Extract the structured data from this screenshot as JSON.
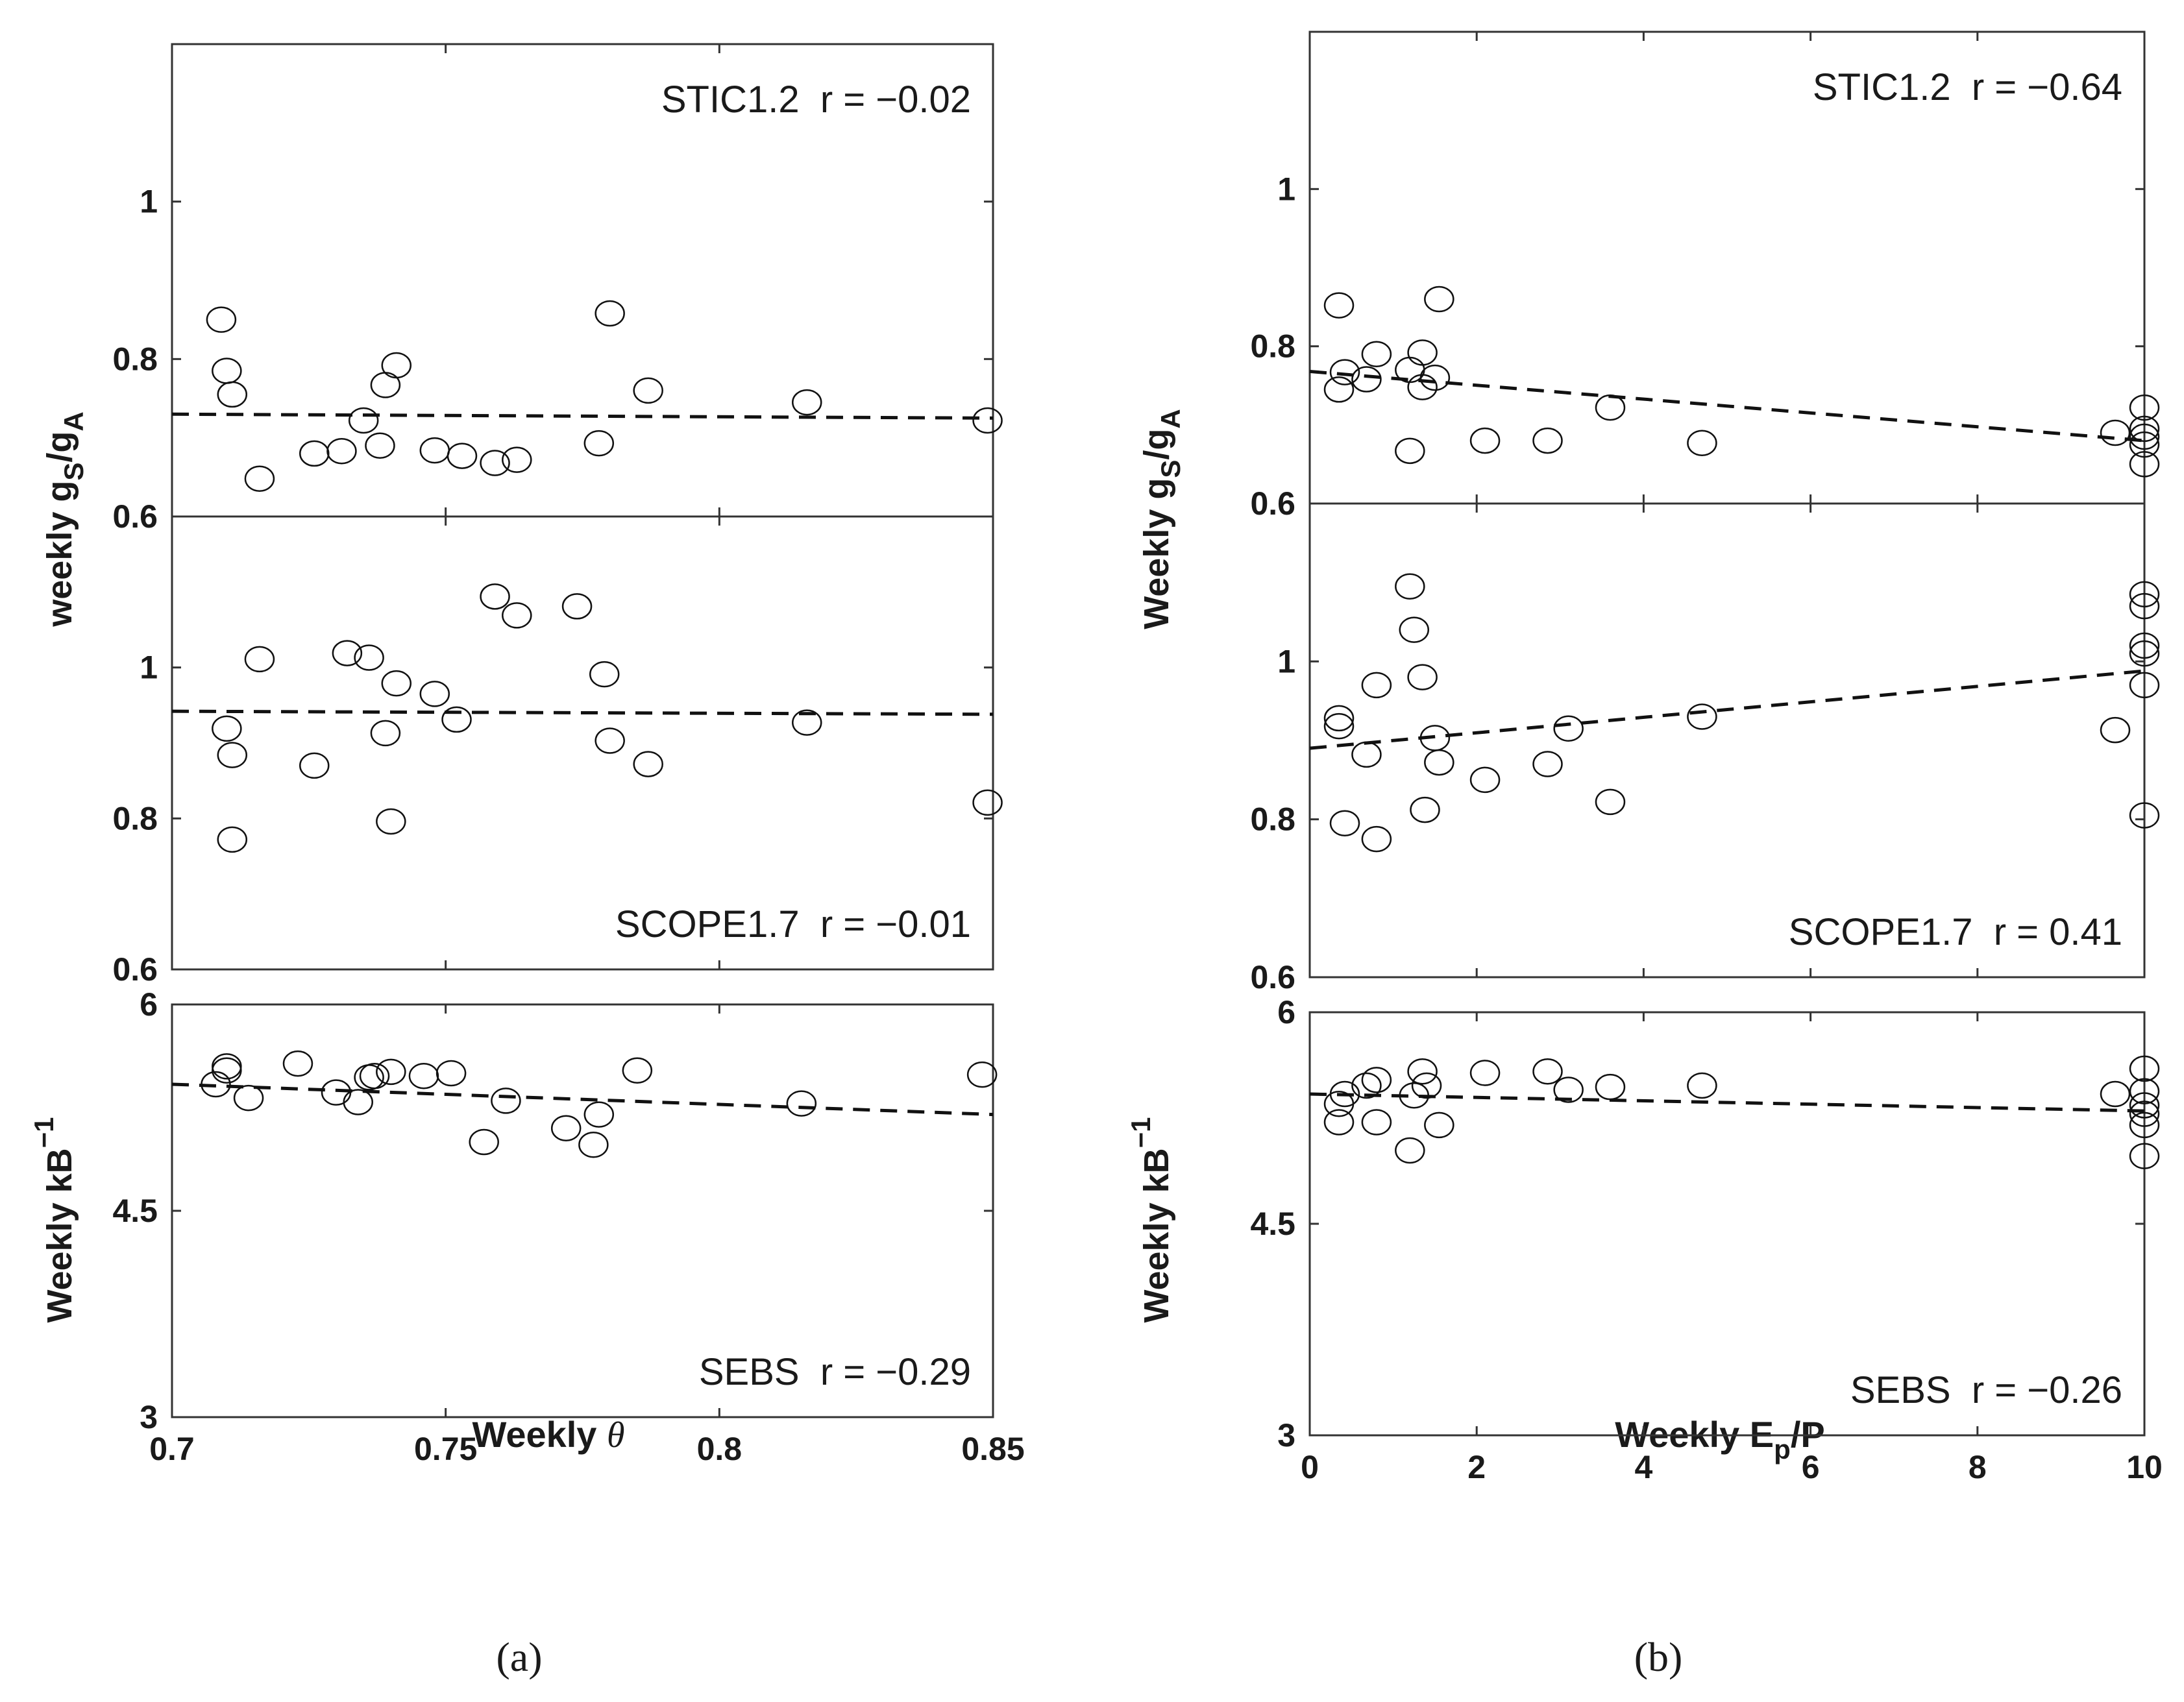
{
  "figure": {
    "label_a": "(a)",
    "label_b": "(b)"
  },
  "chart_data": [
    {
      "id": "a-top",
      "type": "scatter",
      "xlim": [
        0.7,
        0.85
      ],
      "ylim": [
        0.6,
        1.2
      ],
      "yticks": [
        "1",
        "0.8",
        "0.6"
      ],
      "ytick_values": [
        1,
        0.8,
        0.6
      ],
      "ylabel": "weekly gS/gA",
      "annotation": "STIC1.2  r = −0.02",
      "fit": [
        [
          0.7,
          0.73
        ],
        [
          0.85,
          0.725
        ]
      ],
      "points": [
        [
          0.709,
          0.85
        ],
        [
          0.71,
          0.785
        ],
        [
          0.711,
          0.755
        ],
        [
          0.716,
          0.648
        ],
        [
          0.726,
          0.68
        ],
        [
          0.731,
          0.683
        ],
        [
          0.735,
          0.722
        ],
        [
          0.738,
          0.69
        ],
        [
          0.739,
          0.767
        ],
        [
          0.741,
          0.792
        ],
        [
          0.748,
          0.684
        ],
        [
          0.753,
          0.677
        ],
        [
          0.759,
          0.668
        ],
        [
          0.763,
          0.672
        ],
        [
          0.778,
          0.693
        ],
        [
          0.78,
          0.858
        ],
        [
          0.787,
          0.76
        ],
        [
          0.816,
          0.745
        ],
        [
          0.849,
          0.722
        ]
      ]
    },
    {
      "id": "a-mid",
      "type": "scatter",
      "xlim": [
        0.7,
        0.85
      ],
      "ylim": [
        0.6,
        1.2
      ],
      "yticks": [
        "1",
        "0.8",
        "0.6"
      ],
      "ytick_values": [
        1,
        0.8,
        0.6
      ],
      "annotation": "SCOPE1.7  r = −0.01",
      "fit": [
        [
          0.7,
          0.942
        ],
        [
          0.85,
          0.938
        ]
      ],
      "points": [
        [
          0.71,
          0.919
        ],
        [
          0.711,
          0.884
        ],
        [
          0.711,
          0.772
        ],
        [
          0.716,
          1.011
        ],
        [
          0.726,
          0.87
        ],
        [
          0.732,
          1.019
        ],
        [
          0.736,
          1.013
        ],
        [
          0.739,
          0.913
        ],
        [
          0.74,
          0.796
        ],
        [
          0.741,
          0.979
        ],
        [
          0.748,
          0.965
        ],
        [
          0.752,
          0.931
        ],
        [
          0.759,
          1.094
        ],
        [
          0.763,
          1.069
        ],
        [
          0.774,
          1.081
        ],
        [
          0.779,
          0.991
        ],
        [
          0.78,
          0.903
        ],
        [
          0.787,
          0.872
        ],
        [
          0.816,
          0.927
        ],
        [
          0.849,
          0.821
        ]
      ]
    },
    {
      "id": "a-bot",
      "type": "scatter",
      "xlim": [
        0.7,
        0.85
      ],
      "ylim": [
        3,
        6
      ],
      "yticks": [
        "6",
        "4.5",
        "3"
      ],
      "ytick_values": [
        6,
        4.5,
        3
      ],
      "ylabel": "Weekly kB⁻¹",
      "annotation": "SEBS  r = −0.29",
      "fit": [
        [
          0.7,
          5.42
        ],
        [
          0.85,
          5.2
        ]
      ],
      "points": [
        [
          0.708,
          5.42
        ],
        [
          0.71,
          5.55
        ],
        [
          0.71,
          5.52
        ],
        [
          0.714,
          5.32
        ],
        [
          0.723,
          5.57
        ],
        [
          0.73,
          5.36
        ],
        [
          0.734,
          5.29
        ],
        [
          0.736,
          5.47
        ],
        [
          0.737,
          5.48
        ],
        [
          0.74,
          5.51
        ],
        [
          0.746,
          5.48
        ],
        [
          0.751,
          5.5
        ],
        [
          0.757,
          5.0
        ],
        [
          0.761,
          5.3
        ],
        [
          0.772,
          5.1
        ],
        [
          0.777,
          4.98
        ],
        [
          0.778,
          5.2
        ],
        [
          0.785,
          5.52
        ],
        [
          0.815,
          5.28
        ],
        [
          0.848,
          5.49
        ]
      ]
    },
    {
      "id": "b-top",
      "type": "scatter",
      "xlim": [
        0,
        10
      ],
      "ylim": [
        0.6,
        1.2
      ],
      "yticks": [
        "1",
        "0.8",
        "0.6"
      ],
      "ytick_values": [
        1,
        0.8,
        0.6
      ],
      "ylabel": "Weekly gS/gA",
      "annotation": "STIC1.2  r = −0.64",
      "fit": [
        [
          0,
          0.768
        ],
        [
          10,
          0.68
        ]
      ],
      "points": [
        [
          0.35,
          0.852
        ],
        [
          0.35,
          0.745
        ],
        [
          0.42,
          0.767
        ],
        [
          0.68,
          0.758
        ],
        [
          0.8,
          0.79
        ],
        [
          1.2,
          0.77
        ],
        [
          1.2,
          0.667
        ],
        [
          1.35,
          0.792
        ],
        [
          1.35,
          0.748
        ],
        [
          1.5,
          0.76
        ],
        [
          1.55,
          0.86
        ],
        [
          2.1,
          0.68
        ],
        [
          2.85,
          0.68
        ],
        [
          3.6,
          0.722
        ],
        [
          4.7,
          0.677
        ],
        [
          9.65,
          0.69
        ],
        [
          10,
          0.722
        ],
        [
          10,
          0.695
        ],
        [
          10,
          0.685
        ],
        [
          10,
          0.675
        ],
        [
          10,
          0.65
        ]
      ]
    },
    {
      "id": "b-mid",
      "type": "scatter",
      "xlim": [
        0,
        10
      ],
      "ylim": [
        0.6,
        1.2
      ],
      "yticks": [
        "1",
        "0.8",
        "0.6"
      ],
      "ytick_values": [
        1,
        0.8,
        0.6
      ],
      "annotation": "SCOPE1.7  r = 0.41",
      "fit": [
        [
          0,
          0.89
        ],
        [
          10,
          0.988
        ]
      ],
      "points": [
        [
          0.35,
          0.928
        ],
        [
          0.35,
          0.918
        ],
        [
          0.42,
          0.795
        ],
        [
          0.68,
          0.882
        ],
        [
          0.8,
          0.97
        ],
        [
          0.8,
          0.775
        ],
        [
          1.2,
          1.095
        ],
        [
          1.25,
          1.04
        ],
        [
          1.35,
          0.98
        ],
        [
          1.38,
          0.812
        ],
        [
          1.5,
          0.903
        ],
        [
          1.55,
          0.872
        ],
        [
          2.1,
          0.85
        ],
        [
          2.85,
          0.87
        ],
        [
          3.1,
          0.915
        ],
        [
          3.6,
          0.822
        ],
        [
          4.7,
          0.93
        ],
        [
          9.65,
          0.913
        ],
        [
          10,
          1.085
        ],
        [
          10,
          1.07
        ],
        [
          10,
          1.02
        ],
        [
          10,
          1.01
        ],
        [
          10,
          0.97
        ],
        [
          10,
          0.805
        ]
      ]
    },
    {
      "id": "b-bot",
      "type": "scatter",
      "xlim": [
        0,
        10
      ],
      "ylim": [
        3,
        6
      ],
      "yticks": [
        "6",
        "4.5",
        "3"
      ],
      "ytick_values": [
        6,
        4.5,
        3
      ],
      "ylabel": "Weekly kB⁻¹",
      "annotation": "SEBS  r = −0.26",
      "fit": [
        [
          0,
          5.42
        ],
        [
          10,
          5.3
        ]
      ],
      "points": [
        [
          0.35,
          5.22
        ],
        [
          0.35,
          5.35
        ],
        [
          0.42,
          5.42
        ],
        [
          0.68,
          5.48
        ],
        [
          0.8,
          5.22
        ],
        [
          0.8,
          5.52
        ],
        [
          1.2,
          5.02
        ],
        [
          1.25,
          5.41
        ],
        [
          1.35,
          5.58
        ],
        [
          1.4,
          5.48
        ],
        [
          1.55,
          5.2
        ],
        [
          2.1,
          5.57
        ],
        [
          2.85,
          5.58
        ],
        [
          3.1,
          5.45
        ],
        [
          3.6,
          5.47
        ],
        [
          4.7,
          5.48
        ],
        [
          9.65,
          5.42
        ],
        [
          10,
          5.6
        ],
        [
          10,
          5.44
        ],
        [
          10,
          5.34
        ],
        [
          10,
          5.28
        ],
        [
          10,
          5.2
        ],
        [
          10,
          4.98
        ]
      ]
    }
  ],
  "xaxes": {
    "a": {
      "ticks": [
        "0.7",
        "0.75",
        "0.8",
        "0.85"
      ],
      "values": [
        0.7,
        0.75,
        0.8,
        0.85
      ]
    },
    "b": {
      "ticks": [
        "0",
        "2",
        "4",
        "6",
        "8",
        "10"
      ],
      "values": [
        0,
        2,
        4,
        6,
        8,
        10
      ]
    }
  },
  "xlabels": {
    "a_prefix": "Weekly ",
    "a_symbol": "θ",
    "b": "Weekly Ep/P"
  }
}
